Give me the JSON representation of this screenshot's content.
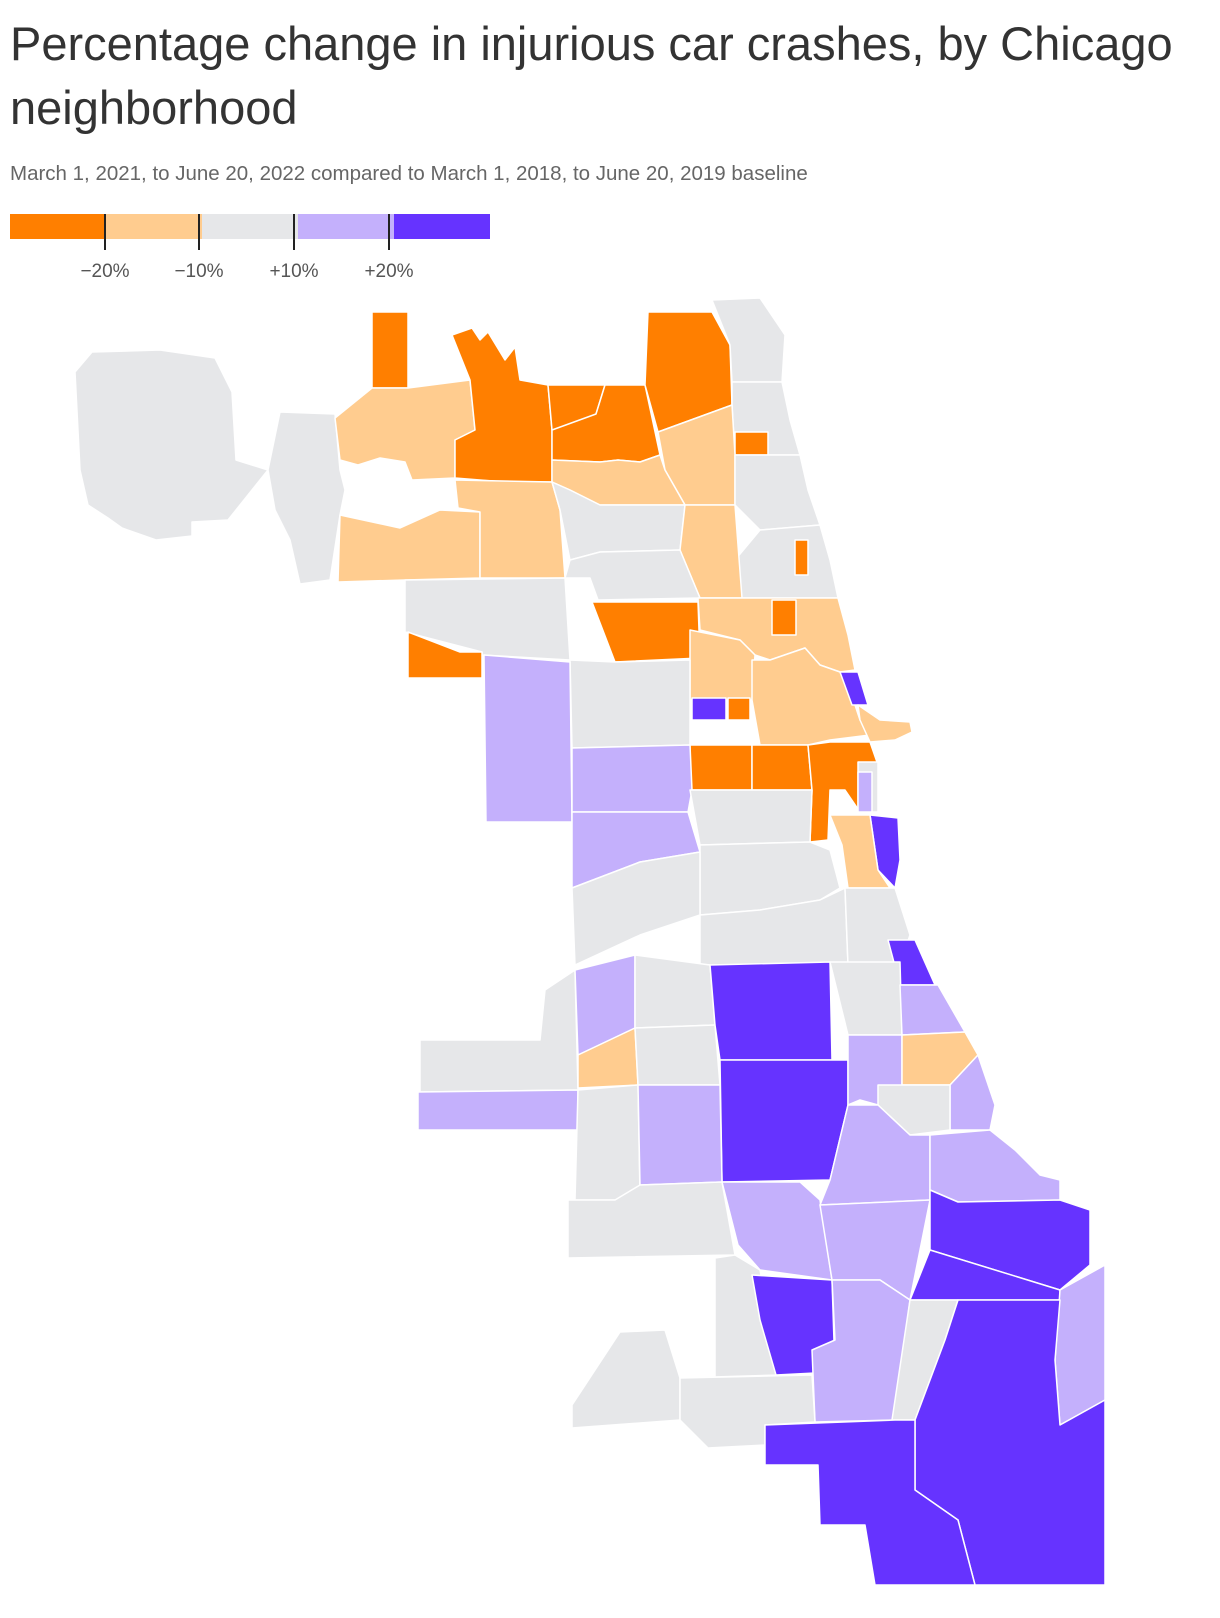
{
  "title": "Percentage change in injurious car crashes, by Chicago neighborhood",
  "subtitle": "March 1, 2021, to June 20, 2022 compared to March 1, 2018, to June 20, 2019 baseline",
  "colors": {
    "big_decrease": "#ff7f00",
    "decrease": "#ffcc8f",
    "little_change": "#e6e7e9",
    "increase": "#c4b0fc",
    "big_increase": "#6633ff"
  },
  "legend": {
    "bins": [
      {
        "key": "big_decrease",
        "label": "less than −20%"
      },
      {
        "key": "decrease",
        "label": "−20% to −10%"
      },
      {
        "key": "little_change",
        "label": "−10% to +10%"
      },
      {
        "key": "increase",
        "label": "+10% to +20%"
      },
      {
        "key": "big_increase",
        "label": "more than +20%"
      }
    ],
    "ticks": [
      "−20%",
      "−10%",
      "+10%",
      "+20%"
    ]
  }
}
